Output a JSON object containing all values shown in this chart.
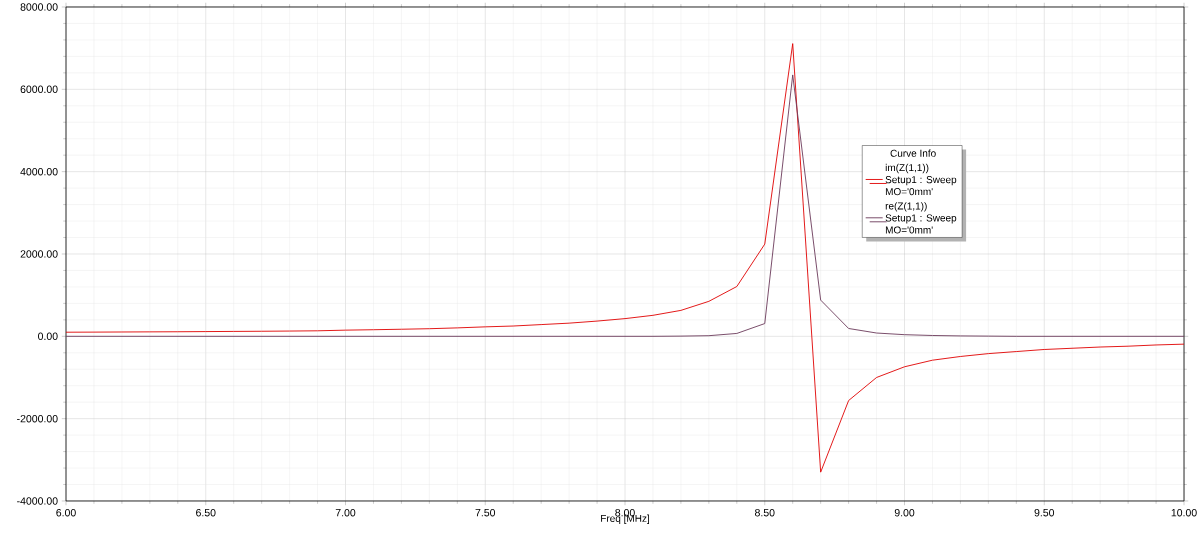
{
  "chart_data": {
    "type": "line",
    "xlabel": "Freq [MHz]",
    "legend_title": "Curve Info",
    "x": [
      6.0,
      6.1,
      6.2,
      6.3,
      6.4,
      6.5,
      6.6,
      6.7,
      6.8,
      6.9,
      7.0,
      7.1,
      7.2,
      7.3,
      7.4,
      7.5,
      7.6,
      7.7,
      7.8,
      7.9,
      8.0,
      8.1,
      8.2,
      8.3,
      8.4,
      8.5,
      8.6,
      8.7,
      8.8,
      8.9,
      9.0,
      9.1,
      9.2,
      9.3,
      9.4,
      9.5,
      9.6,
      9.7,
      9.8,
      9.9,
      10.0
    ],
    "series": [
      {
        "name": "im(Z(1,1)) Setup1 : Sweep MO='0mm'",
        "color": "#e00000",
        "values": [
          100,
          102,
          105,
          108,
          111,
          115,
          119,
          123,
          128,
          134,
          150,
          160,
          172,
          185,
          205,
          230,
          250,
          285,
          320,
          370,
          430,
          510,
          630,
          850,
          1210,
          2240,
          7110,
          -3300,
          -1560,
          -1000,
          -740,
          -580,
          -490,
          -420,
          -370,
          -320,
          -290,
          -260,
          -240,
          -210,
          -190
        ]
      },
      {
        "name": "re(Z(1,1)) Setup1 : Sweep MO='0mm'",
        "color": "#6b3a5a",
        "values": [
          0,
          0,
          0,
          0,
          0,
          0,
          0,
          0,
          0,
          0,
          0,
          0,
          0,
          0,
          0,
          0,
          0,
          0,
          0,
          0,
          0,
          0,
          5,
          15,
          70,
          310,
          6350,
          880,
          190,
          80,
          40,
          20,
          10,
          5,
          0,
          0,
          0,
          0,
          0,
          0,
          0
        ]
      }
    ],
    "xlim": [
      6.0,
      10.0
    ],
    "ylim": [
      -4000,
      8000
    ],
    "xticks": [
      {
        "value": 6.0,
        "label": "6.00"
      },
      {
        "value": 6.5,
        "label": "6.50"
      },
      {
        "value": 7.0,
        "label": "7.00"
      },
      {
        "value": 7.5,
        "label": "7.50"
      },
      {
        "value": 8.0,
        "label": "8.00"
      },
      {
        "value": 8.5,
        "label": "8.50"
      },
      {
        "value": 9.0,
        "label": "9.00"
      },
      {
        "value": 9.5,
        "label": "9.50"
      },
      {
        "value": 10.0,
        "label": "10.00"
      }
    ],
    "yticks": [
      {
        "value": -4000,
        "label": "-4000.00"
      },
      {
        "value": -2000,
        "label": "-2000.00"
      },
      {
        "value": 0,
        "label": "0.00"
      },
      {
        "value": 2000,
        "label": "2000.00"
      },
      {
        "value": 4000,
        "label": "4000.00"
      },
      {
        "value": 6000,
        "label": "6000.00"
      },
      {
        "value": 8000,
        "label": "8000.00"
      }
    ],
    "grid": true,
    "legend": "top right",
    "marker": "none",
    "line_style": "solid"
  }
}
